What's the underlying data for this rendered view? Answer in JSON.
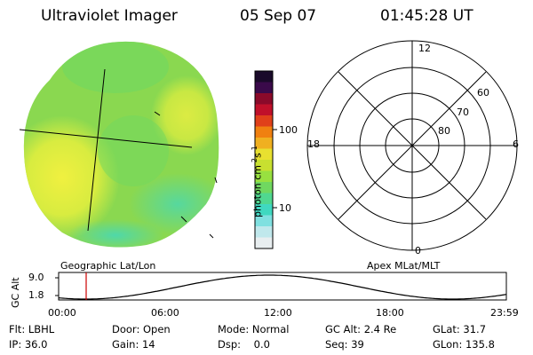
{
  "header": {
    "title": "Ultraviolet Imager",
    "date": "05 Sep 07",
    "time": "01:45:28 UT"
  },
  "colorbar": {
    "unit_label": "photon cm",
    "unit_exp1": "-2",
    "unit_mid": "s",
    "unit_exp2": "-1",
    "tick_100": "100",
    "tick_10": "10",
    "colors": [
      "#1a0a2a",
      "#3a0a4a",
      "#8a0a2a",
      "#c0102a",
      "#e0401a",
      "#f08010",
      "#f0b020",
      "#e8e030",
      "#c8e030",
      "#98e040",
      "#70d860",
      "#50d890",
      "#40d8c0",
      "#80e0e0",
      "#c0e8ec",
      "#e8eef0"
    ]
  },
  "image_panel": {
    "label": "Geographic Lat/Lon",
    "name": "geographic-image"
  },
  "polar_plot": {
    "label": "Apex MLat/MLT",
    "mlt_labels": {
      "top": "12",
      "right": "6",
      "bottom": "0",
      "left": "18"
    },
    "lat_labels": [
      "60",
      "70",
      "80"
    ]
  },
  "altitude_plot": {
    "ylabel": "GC Alt",
    "ymax": "9.0",
    "ymin": "1.8",
    "xticks": [
      "00:00",
      "06:00",
      "12:00",
      "18:00",
      "23:59"
    ],
    "marker_time": "01:45"
  },
  "info": {
    "flt_label": "Flt:",
    "flt_value": "LBHL",
    "ip_label": "IP:",
    "ip_value": "36.0",
    "door_label": "Door:",
    "door_value": "Open",
    "gain_label": "Gain:",
    "gain_value": "14",
    "mode_label": "Mode:",
    "mode_value": "Normal",
    "dsp_label": "Dsp:",
    "dsp_value": "0.0",
    "gcalt_label": "GC Alt:",
    "gcalt_value": "2.4 Re",
    "seq_label": "Seq:",
    "seq_value": "39",
    "glat_label": "GLat:",
    "glat_value": "31.7",
    "glon_label": "GLon:",
    "glon_value": "135.8"
  }
}
